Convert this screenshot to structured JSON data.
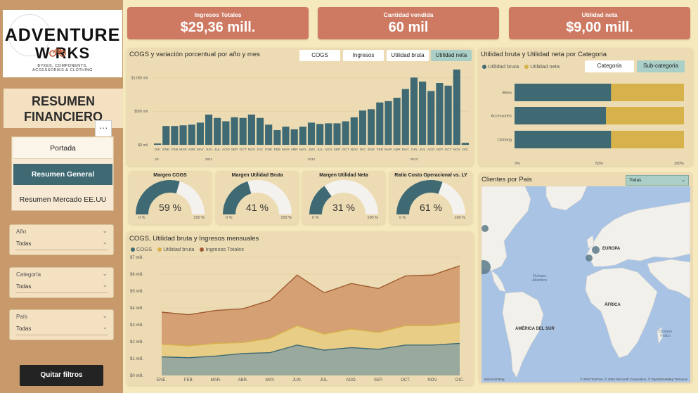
{
  "sidebar": {
    "logo": {
      "line1": "ADVENTURE",
      "line2": "W  RKS",
      "tagline1": "BYKES, COMPONENTS,",
      "tagline2": "ACCESSORIES & CLOTHING"
    },
    "title_line1": "RESUMEN",
    "title_line2": "FINANCIERO",
    "more_label": "···",
    "nav": [
      {
        "label": "Portada"
      },
      {
        "label": "Resumen General"
      },
      {
        "label": "Resumen Mercado EE.UU"
      }
    ],
    "filters": [
      {
        "label": "Año",
        "value": "Todas"
      },
      {
        "label": "Categoría",
        "value": "Todas"
      },
      {
        "label": "País",
        "value": "Todas"
      }
    ],
    "clear_label": "Quitar filtros"
  },
  "kpis": [
    {
      "label": "Ingresos Totales",
      "value": "$29,36 mill."
    },
    {
      "label": "Cantidad vendida",
      "value": "60 mil"
    },
    {
      "label": "Utilidad neta",
      "value": "$9,00 mill."
    }
  ],
  "colors": {
    "teal": "#3f6a73",
    "gold": "#d7b24a",
    "salmon": "#ce7a62",
    "bg": "#f6e9bd",
    "panel": "#eddcb3",
    "accent": "#a9cfc7",
    "brown": "#a05a33"
  },
  "cogs_panel": {
    "title": "COGS y variación porcentual por año y mes",
    "tabs": [
      "COGS",
      "Ingresos",
      "Utilidad bruta",
      "Utilidad neta"
    ],
    "active_tab": 3
  },
  "category_panel": {
    "title": "Utilidad bruta y Utilidad neta por Categoria",
    "legend": [
      "Utilidad bruta",
      "Utilidad neta"
    ],
    "buttons": [
      "Categoria",
      "Sub-categoria"
    ],
    "active_button": 1
  },
  "gauges": [
    {
      "title": "Margen COGS",
      "value": "59 %",
      "fraction": 0.59,
      "min": "0 %",
      "max": "100 %"
    },
    {
      "title": "Margen Utilidad Bruta",
      "value": "41 %",
      "fraction": 0.41,
      "min": "0 %",
      "max": "100 %"
    },
    {
      "title": "Margen Utilidad Neta",
      "value": "31 %",
      "fraction": 0.31,
      "min": "0 %",
      "max": "100 %"
    },
    {
      "title": "Ratio Costo Operacional vs. LY",
      "value": "61 %",
      "fraction": 0.61,
      "min": "0 %",
      "max": "100 %"
    }
  ],
  "area_panel": {
    "title": "COGS, Utilidad bruta y Ingresos mensuales",
    "legend": [
      "COGS",
      "Utilidad bruta",
      "Ingresos Totales"
    ]
  },
  "map_panel": {
    "title": "Clientes por Pais",
    "selector": "Todas",
    "labels": {
      "europe": "EUROPA",
      "africa": "ÁFRICA",
      "south_america": "AMÉRICA DEL SUR",
      "atlantic1": "Océano",
      "atlantic2": "Atlántico",
      "indian1": "Océano",
      "indian2": "Índico"
    },
    "attribution": "© 2024 TomTom, © 2024 Microsoft Corporation, © OpenStreetMap  Términos",
    "brand": "Microsoft Bing"
  },
  "chart_data": [
    {
      "type": "bar",
      "ylabel": "",
      "yticks": [
        "$1.000 mil",
        "$500 mil",
        "$0 mil"
      ],
      "ylim": [
        0,
        1150
      ],
      "categories": [
        "DIC",
        "ENE",
        "FEB",
        "MAR",
        "ABR",
        "MAY",
        "JUN",
        "JUL",
        "AGO",
        "SEP",
        "OCT",
        "NOV",
        "DIC",
        "ENE",
        "FEB",
        "MAR",
        "ABR",
        "MAY",
        "JUN",
        "JUL",
        "AGO",
        "SEP",
        "OCT",
        "NOV",
        "DIC",
        "ENE",
        "FEB",
        "MAR",
        "ABR",
        "MAY",
        "JUN",
        "JUL",
        "AGO",
        "SEP",
        "OCT",
        "NOV",
        "DIC"
      ],
      "years": [
        {
          "label": "20..",
          "index": 0
        },
        {
          "label": "2011",
          "index": 6
        },
        {
          "label": "2012",
          "index": 18
        },
        {
          "label": "2013",
          "index": 30
        }
      ],
      "values": [
        20,
        280,
        280,
        290,
        300,
        330,
        450,
        400,
        350,
        410,
        400,
        450,
        400,
        300,
        220,
        270,
        230,
        270,
        330,
        310,
        320,
        320,
        350,
        410,
        510,
        530,
        630,
        650,
        700,
        830,
        1000,
        940,
        800,
        920,
        880,
        1120,
        30
      ]
    },
    {
      "type": "bar",
      "orientation": "horizontal",
      "categories": [
        "Bikes",
        "Accessories",
        "Clothing"
      ],
      "series": [
        {
          "name": "Utilidad bruta",
          "values": [
            57,
            54,
            57
          ]
        },
        {
          "name": "Utilidad neta",
          "values": [
            43,
            46,
            43
          ]
        }
      ],
      "xticks": [
        "0%",
        "50%",
        "100%"
      ],
      "xlim": [
        0,
        100
      ]
    },
    {
      "type": "area",
      "categories": [
        "ENE.",
        "FEB.",
        "MAR.",
        "ABR.",
        "MAY.",
        "JUN.",
        "JUL.",
        "AGO.",
        "SEP.",
        "OCT.",
        "NOV.",
        "DIC."
      ],
      "yticks": [
        "$7 mill.",
        "$6 mill.",
        "$5 mill.",
        "$4 mill.",
        "$3 mill.",
        "$2 mill.",
        "$1 mill.",
        "$0 mill."
      ],
      "ylim": [
        0,
        7
      ],
      "series": [
        {
          "name": "COGS",
          "values": [
            1.1,
            1.05,
            1.15,
            1.3,
            1.35,
            1.8,
            1.5,
            1.65,
            1.55,
            1.8,
            1.8,
            1.9
          ]
        },
        {
          "name": "Utilidad bruta",
          "values": [
            1.85,
            1.75,
            1.9,
            1.95,
            2.2,
            2.95,
            2.45,
            2.75,
            2.55,
            2.95,
            2.95,
            3.15
          ]
        },
        {
          "name": "Ingresos Totales",
          "values": [
            3.75,
            3.6,
            3.85,
            3.95,
            4.45,
            5.95,
            4.9,
            5.45,
            5.15,
            5.9,
            5.95,
            6.5
          ]
        }
      ]
    }
  ]
}
